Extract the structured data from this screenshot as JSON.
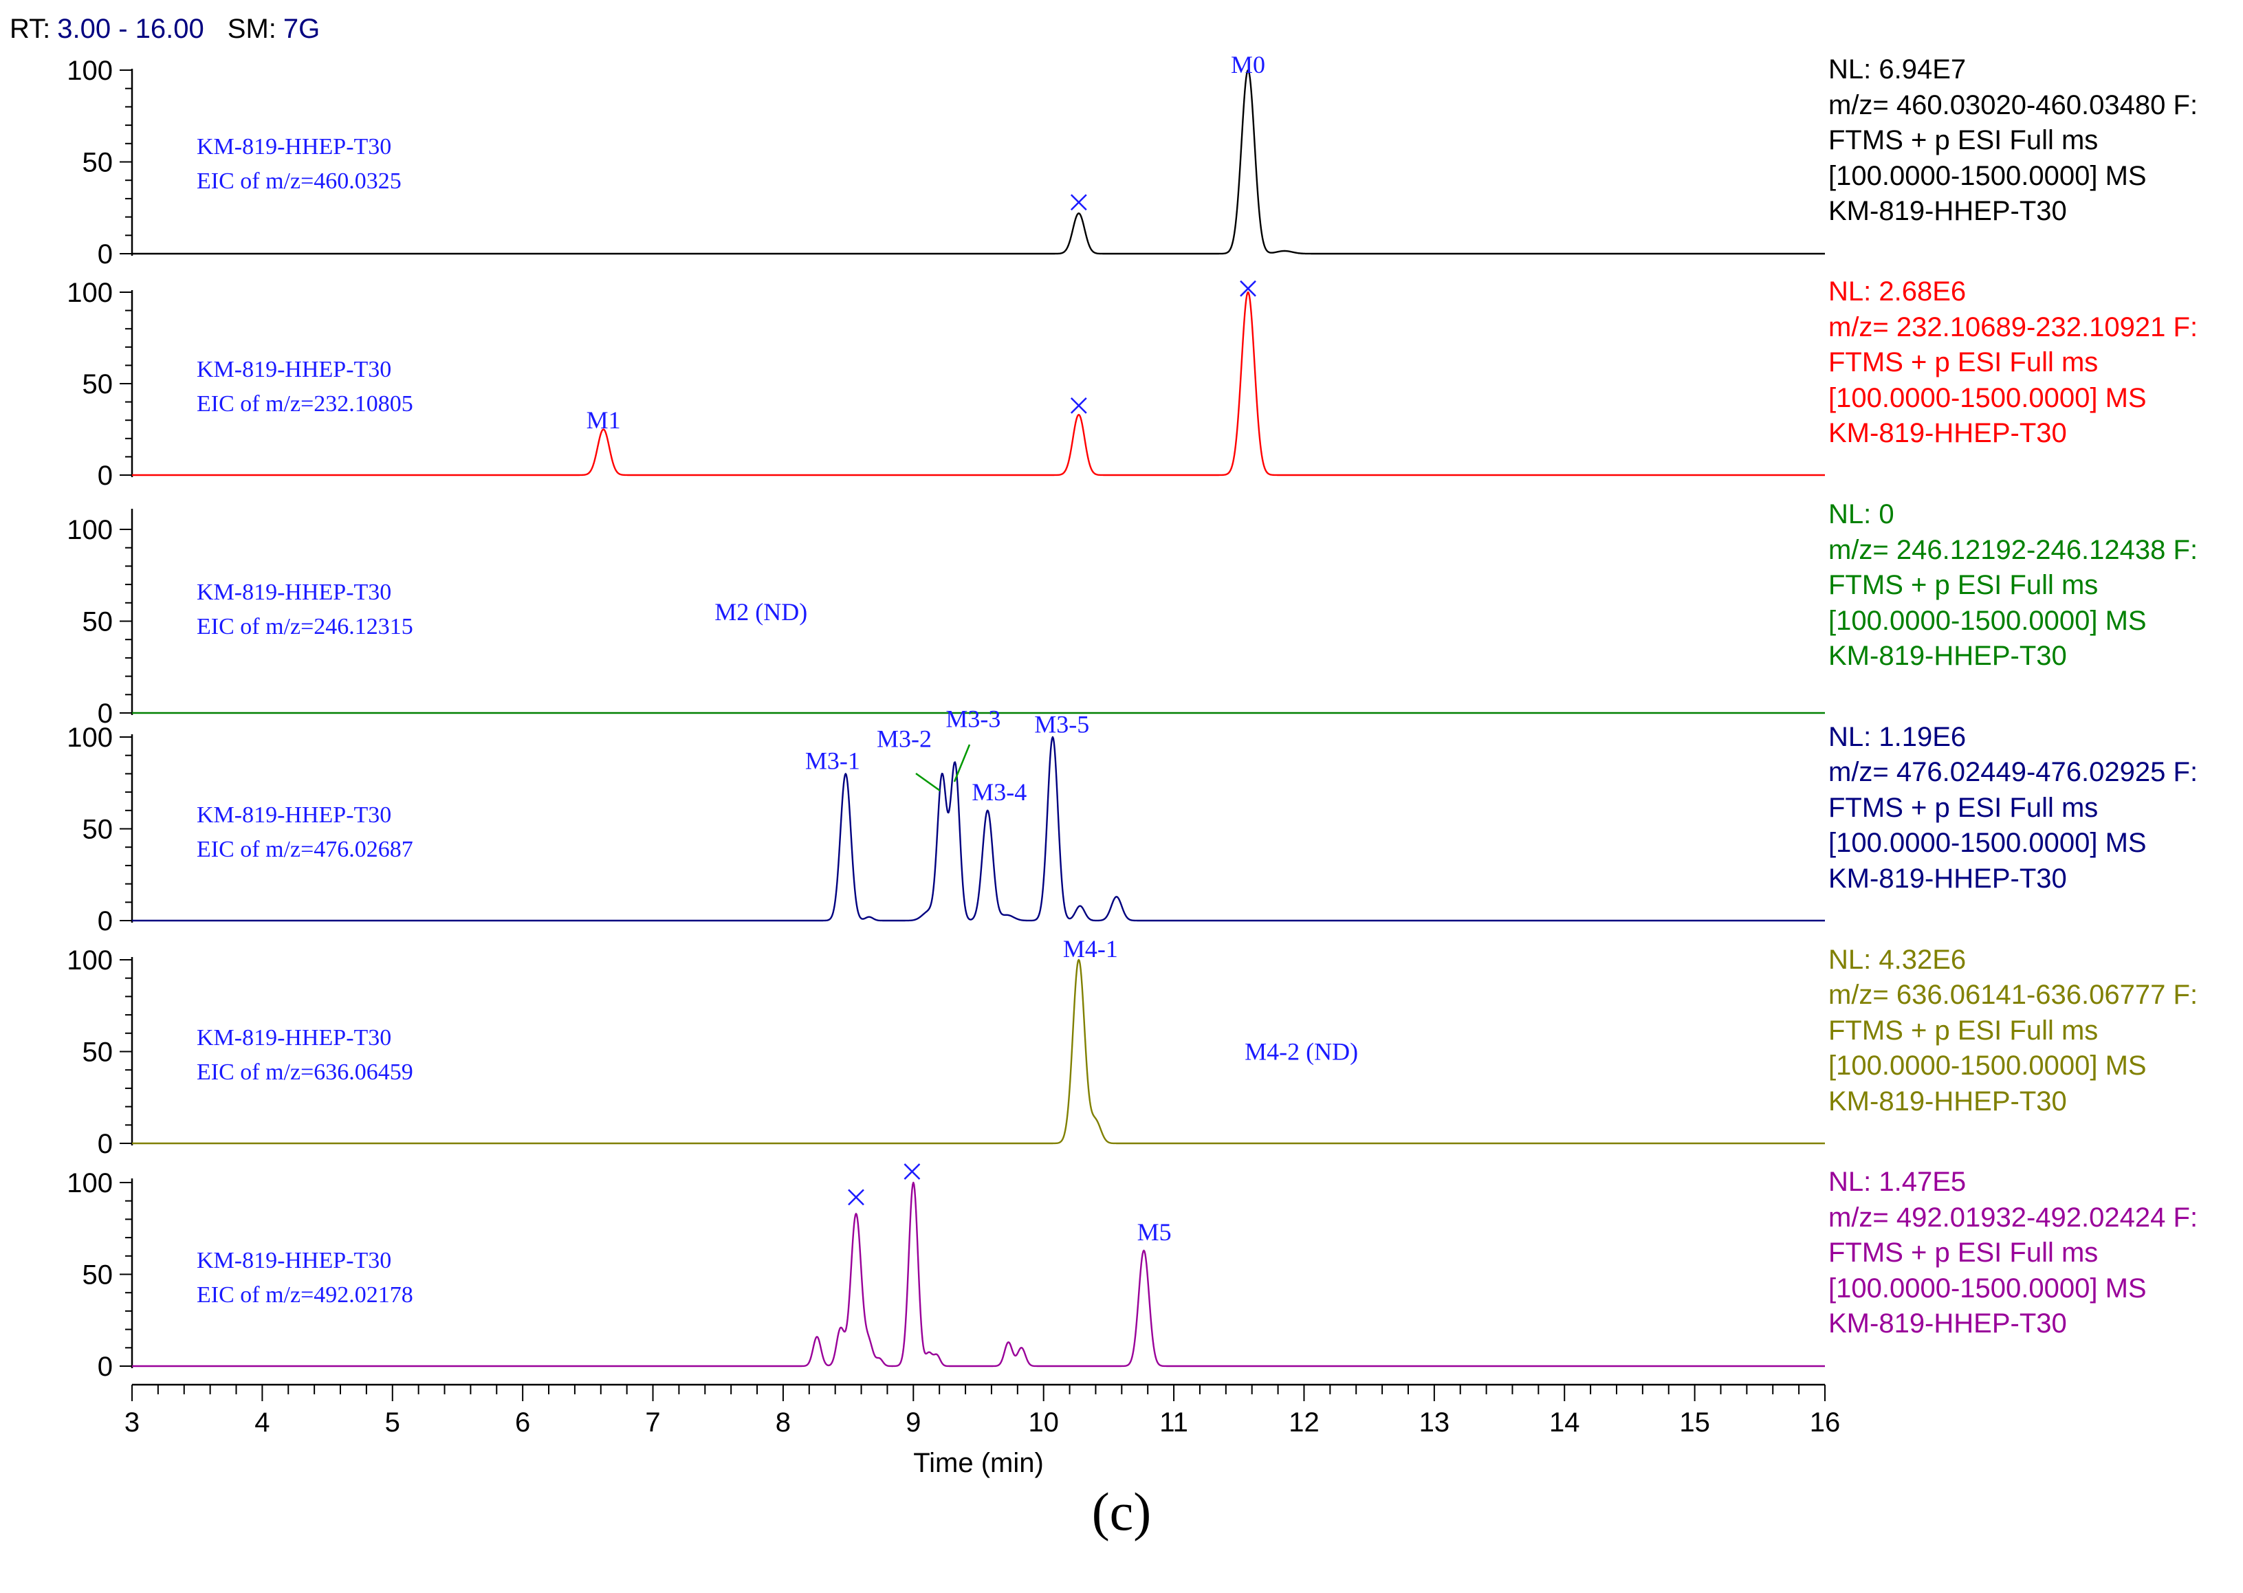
{
  "header": {
    "rt_label": "RT:",
    "rt_range": "3.00 - 16.00",
    "sm_label": "SM:",
    "sm_value": "7G"
  },
  "panel_label": "(c)",
  "chart_data": {
    "type": "line",
    "title": "RT: 3.00 - 16.00 SM: 7G",
    "xlabel": "Time (min)",
    "ylabel": "",
    "x_range": [
      3,
      16
    ],
    "x_ticks": [
      3,
      4,
      5,
      6,
      7,
      8,
      9,
      10,
      11,
      12,
      13,
      14,
      15,
      16
    ],
    "y_range": [
      0,
      100
    ],
    "y_ticks": [
      0,
      50,
      100
    ],
    "series": [
      {
        "name": "KM-819-HHEP-T30 EIC 460.0325",
        "color": "#000000",
        "sample": "KM-819-HHEP-T30",
        "eic": "EIC of m/z=460.0325",
        "nl": "NL: 6.94E7",
        "mz": "m/z= 460.03020-460.03480 F:",
        "scan": "FTMS + p ESI Full ms",
        "range": "[100.0000-1500.0000]  MS",
        "file": "KM-819-HHEP-T30",
        "peaks": [
          {
            "rt": 10.27,
            "h": 22,
            "w": 0.045
          },
          {
            "rt": 11.57,
            "h": 100,
            "w": 0.05
          },
          {
            "rt": 11.85,
            "h": 1.5,
            "w": 0.06
          }
        ],
        "annotations": [
          {
            "text": "M0",
            "rt": 11.57,
            "y": 103
          }
        ],
        "markers": [
          {
            "rt": 10.27,
            "y": 28
          }
        ]
      },
      {
        "name": "KM-819-HHEP-T30 EIC 232.10805",
        "color": "#ff0000",
        "sample": "KM-819-HHEP-T30",
        "eic": "EIC of m/z=232.10805",
        "nl": "NL: 2.68E6",
        "mz": "m/z= 232.10689-232.10921 F:",
        "scan": "FTMS + p ESI Full ms",
        "range": "[100.0000-1500.0000]  MS",
        "file": "KM-819-HHEP-T30",
        "peaks": [
          {
            "rt": 6.62,
            "h": 25,
            "w": 0.045
          },
          {
            "rt": 10.27,
            "h": 33,
            "w": 0.045
          },
          {
            "rt": 11.57,
            "h": 100,
            "w": 0.05
          }
        ],
        "annotations": [
          {
            "text": "M1",
            "rt": 6.62,
            "y": 30
          }
        ],
        "markers": [
          {
            "rt": 10.27,
            "y": 38
          },
          {
            "rt": 11.57,
            "y": 102
          }
        ]
      },
      {
        "name": "KM-819-HHEP-T30 EIC 246.12315",
        "color": "#008000",
        "sample": "KM-819-HHEP-T30",
        "eic": "EIC of m/z=246.12315",
        "nl": "NL: 0",
        "mz": "m/z= 246.12192-246.12438 F:",
        "scan": "FTMS + p ESI Full ms",
        "range": "[100.0000-1500.0000]  MS",
        "file": "KM-819-HHEP-T30",
        "peaks": [],
        "annotations": [
          {
            "text": "M2 (ND)",
            "rt": 7.83,
            "y": 55
          }
        ],
        "markers": []
      },
      {
        "name": "KM-819-HHEP-T30 EIC 476.02687",
        "color": "#000080",
        "sample": "KM-819-HHEP-T30",
        "eic": "EIC of m/z=476.02687",
        "nl": "NL: 1.19E6",
        "mz": "m/z= 476.02449-476.02925 F:",
        "scan": "FTMS + p ESI Full ms",
        "range": "[100.0000-1500.0000]  MS",
        "file": "KM-819-HHEP-T30",
        "peaks": [
          {
            "rt": 8.48,
            "h": 80,
            "w": 0.04
          },
          {
            "rt": 8.66,
            "h": 2,
            "w": 0.03
          },
          {
            "rt": 9.12,
            "h": 5,
            "w": 0.05
          },
          {
            "rt": 9.22,
            "h": 78,
            "w": 0.035
          },
          {
            "rt": 9.32,
            "h": 85,
            "w": 0.035
          },
          {
            "rt": 9.57,
            "h": 60,
            "w": 0.04
          },
          {
            "rt": 9.72,
            "h": 3,
            "w": 0.05
          },
          {
            "rt": 10.07,
            "h": 100,
            "w": 0.04
          },
          {
            "rt": 10.28,
            "h": 8,
            "w": 0.035
          },
          {
            "rt": 10.56,
            "h": 13,
            "w": 0.04
          }
        ],
        "annotations": [
          {
            "text": "M3-1",
            "rt": 8.38,
            "y": 87
          },
          {
            "text": "M3-2",
            "rt": 8.93,
            "y": 99
          },
          {
            "text": "M3-3",
            "rt": 9.46,
            "y": 110
          },
          {
            "text": "M3-4",
            "rt": 9.66,
            "y": 70
          },
          {
            "text": "M3-5",
            "rt": 10.14,
            "y": 107
          }
        ],
        "markers": []
      },
      {
        "name": "KM-819-HHEP-T30 EIC 636.06459",
        "color": "#808000",
        "sample": "KM-819-HHEP-T30",
        "eic": "EIC of m/z=636.06459",
        "nl": "NL: 4.32E6",
        "mz": "m/z= 636.06141-636.06777 F:",
        "scan": "FTMS + p ESI Full ms",
        "range": "[100.0000-1500.0000]  MS",
        "file": "KM-819-HHEP-T30",
        "peaks": [
          {
            "rt": 10.27,
            "h": 100,
            "w": 0.045
          },
          {
            "rt": 10.4,
            "h": 12,
            "w": 0.04
          }
        ],
        "annotations": [
          {
            "text": "M4-1",
            "rt": 10.36,
            "y": 106
          },
          {
            "text": "M4-2 (ND)",
            "rt": 11.98,
            "y": 50
          }
        ],
        "markers": []
      },
      {
        "name": "KM-819-HHEP-T30 EIC 492.02178",
        "color": "#990099",
        "sample": "KM-819-HHEP-T30",
        "eic": "EIC of m/z=492.02178",
        "nl": "NL: 1.47E5",
        "mz": "m/z= 492.01932-492.02424 F:",
        "scan": "FTMS + p ESI Full ms",
        "range": "[100.0000-1500.0000]  MS",
        "file": "KM-819-HHEP-T30",
        "peaks": [
          {
            "rt": 8.26,
            "h": 16,
            "w": 0.03
          },
          {
            "rt": 8.44,
            "h": 20,
            "w": 0.03
          },
          {
            "rt": 8.56,
            "h": 83,
            "w": 0.04
          },
          {
            "rt": 8.66,
            "h": 12,
            "w": 0.03
          },
          {
            "rt": 8.74,
            "h": 4,
            "w": 0.025
          },
          {
            "rt": 9.0,
            "h": 100,
            "w": 0.035
          },
          {
            "rt": 9.12,
            "h": 7,
            "w": 0.025
          },
          {
            "rt": 9.18,
            "h": 6,
            "w": 0.025
          },
          {
            "rt": 9.73,
            "h": 13,
            "w": 0.03
          },
          {
            "rt": 9.83,
            "h": 10,
            "w": 0.03
          },
          {
            "rt": 10.77,
            "h": 63,
            "w": 0.04
          }
        ],
        "annotations": [
          {
            "text": "M5",
            "rt": 10.85,
            "y": 73
          }
        ],
        "markers": [
          {
            "rt": 8.56,
            "y": 92
          },
          {
            "rt": 8.99,
            "y": 106
          }
        ]
      }
    ]
  }
}
